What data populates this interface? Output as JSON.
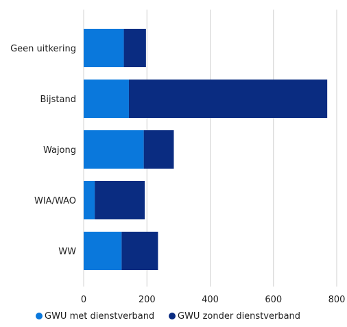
{
  "chart_data": {
    "type": "bar",
    "orientation": "horizontal",
    "stacked": true,
    "categories": [
      "Geen uitkering",
      "Bijstand",
      "Wajong",
      "WIA/WAO",
      "WW"
    ],
    "series": [
      {
        "name": "GWU met dienstverband",
        "color": "#0A78DC",
        "values": [
          127,
          143,
          190,
          35,
          120
        ]
      },
      {
        "name": "GWU zonder dienstverband",
        "color": "#0A2C81",
        "values": [
          70,
          627,
          95,
          158,
          115
        ]
      }
    ],
    "xlim": [
      0,
      800
    ],
    "x_ticks": [
      "0",
      "200",
      "400",
      "600",
      "800"
    ],
    "grid": true,
    "legend_position": "bottom"
  }
}
